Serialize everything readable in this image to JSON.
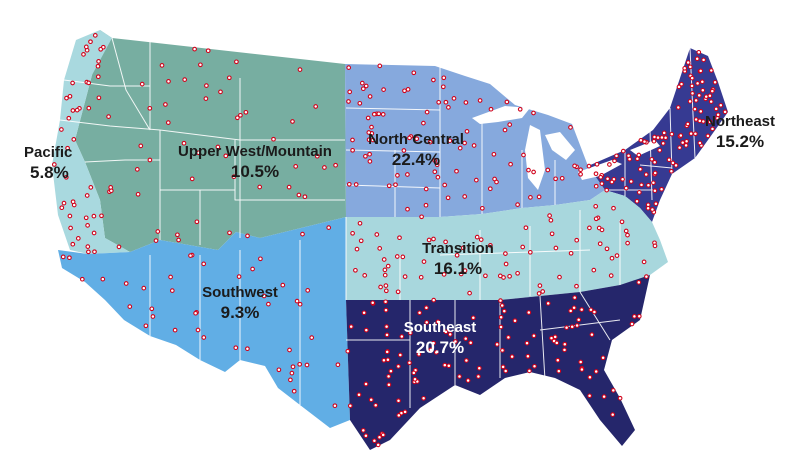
{
  "regions": [
    {
      "id": "pacific",
      "name": "Pacific",
      "percent": "5.8%",
      "color": "#a9d9df"
    },
    {
      "id": "upper-west-mountain",
      "name": "Upper West/Mountain",
      "percent": "10.5%",
      "color": "#77aea1"
    },
    {
      "id": "north-central",
      "name": "North Central",
      "percent": "22.4%",
      "color": "#86a9dd"
    },
    {
      "id": "northeast",
      "name": "Northeast",
      "percent": "15.2%",
      "color": "#363a92"
    },
    {
      "id": "transition",
      "name": "Transition",
      "percent": "16.1%",
      "color": "#a8d7dd"
    },
    {
      "id": "southwest",
      "name": "Southwest",
      "percent": "9.3%",
      "color": "#61aee5"
    },
    {
      "id": "southeast",
      "name": "Southeast",
      "percent": "20.7%",
      "color": "#25266b"
    }
  ],
  "marker_style": {
    "fill": "#ffffff",
    "stroke": "#d0021b"
  }
}
